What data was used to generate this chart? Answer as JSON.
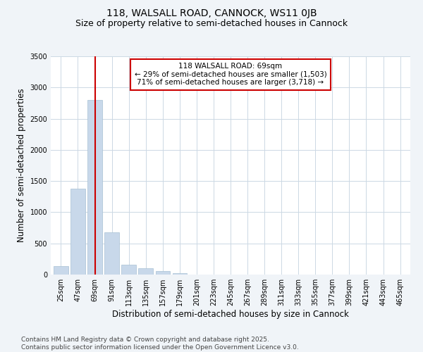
{
  "title_line1": "118, WALSALL ROAD, CANNOCK, WS11 0JB",
  "title_line2": "Size of property relative to semi-detached houses in Cannock",
  "xlabel": "Distribution of semi-detached houses by size in Cannock",
  "ylabel": "Number of semi-detached properties",
  "categories": [
    "25sqm",
    "47sqm",
    "69sqm",
    "91sqm",
    "113sqm",
    "135sqm",
    "157sqm",
    "179sqm",
    "201sqm",
    "223sqm",
    "245sqm",
    "267sqm",
    "289sqm",
    "311sqm",
    "333sqm",
    "355sqm",
    "377sqm",
    "399sqm",
    "421sqm",
    "443sqm",
    "465sqm"
  ],
  "values": [
    130,
    1380,
    2800,
    680,
    160,
    105,
    55,
    25,
    5,
    2,
    1,
    0,
    0,
    0,
    0,
    0,
    0,
    0,
    0,
    0,
    0
  ],
  "bar_color": "#c8d8ea",
  "bar_edge_color": "#a8c0d4",
  "highlight_index": 2,
  "highlight_line_color": "#cc0000",
  "annotation_text": "118 WALSALL ROAD: 69sqm\n← 29% of semi-detached houses are smaller (1,503)\n71% of semi-detached houses are larger (3,718) →",
  "annotation_box_color": "#ffffff",
  "annotation_box_edge": "#cc0000",
  "ylim": [
    0,
    3500
  ],
  "yticks": [
    0,
    500,
    1000,
    1500,
    2000,
    2500,
    3000,
    3500
  ],
  "footnote": "Contains HM Land Registry data © Crown copyright and database right 2025.\nContains public sector information licensed under the Open Government Licence v3.0.",
  "background_color": "#f0f4f8",
  "plot_background": "#ffffff",
  "title_fontsize": 10,
  "subtitle_fontsize": 9,
  "axis_label_fontsize": 8.5,
  "tick_fontsize": 7,
  "annotation_fontsize": 7.5,
  "footnote_fontsize": 6.5
}
